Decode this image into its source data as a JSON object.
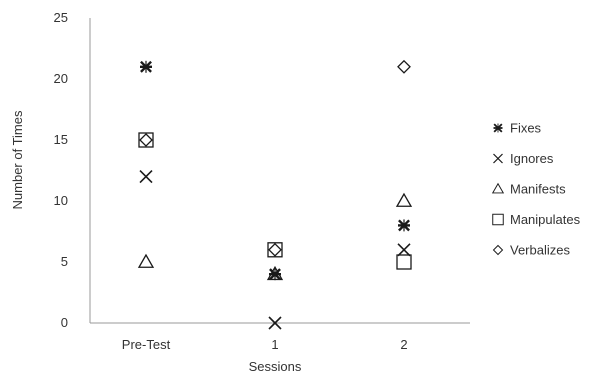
{
  "chart_data": {
    "type": "scatter",
    "xlabel": "Sessions",
    "ylabel": "Number of Times",
    "categories": [
      "Pre-Test",
      "1",
      "2"
    ],
    "ylim": [
      0,
      25
    ],
    "y_ticks": [
      "0",
      "5",
      "10",
      "15",
      "20",
      "25"
    ],
    "grid": false,
    "legend_position": "right",
    "series": [
      {
        "name": "Fixes",
        "marker": "asterisk",
        "values": [
          21,
          4,
          8
        ]
      },
      {
        "name": "Ignores",
        "marker": "x",
        "values": [
          12,
          0,
          6
        ]
      },
      {
        "name": "Manifests",
        "marker": "triangle",
        "values": [
          5,
          4,
          10
        ]
      },
      {
        "name": "Manipulates",
        "marker": "square",
        "values": [
          15,
          6,
          5
        ]
      },
      {
        "name": "Verbalizes",
        "marker": "diamond",
        "values": [
          15,
          6,
          21
        ]
      }
    ],
    "colors": {
      "marker": "#1a1a1a",
      "axis": "#999999",
      "text": "#333333"
    }
  }
}
